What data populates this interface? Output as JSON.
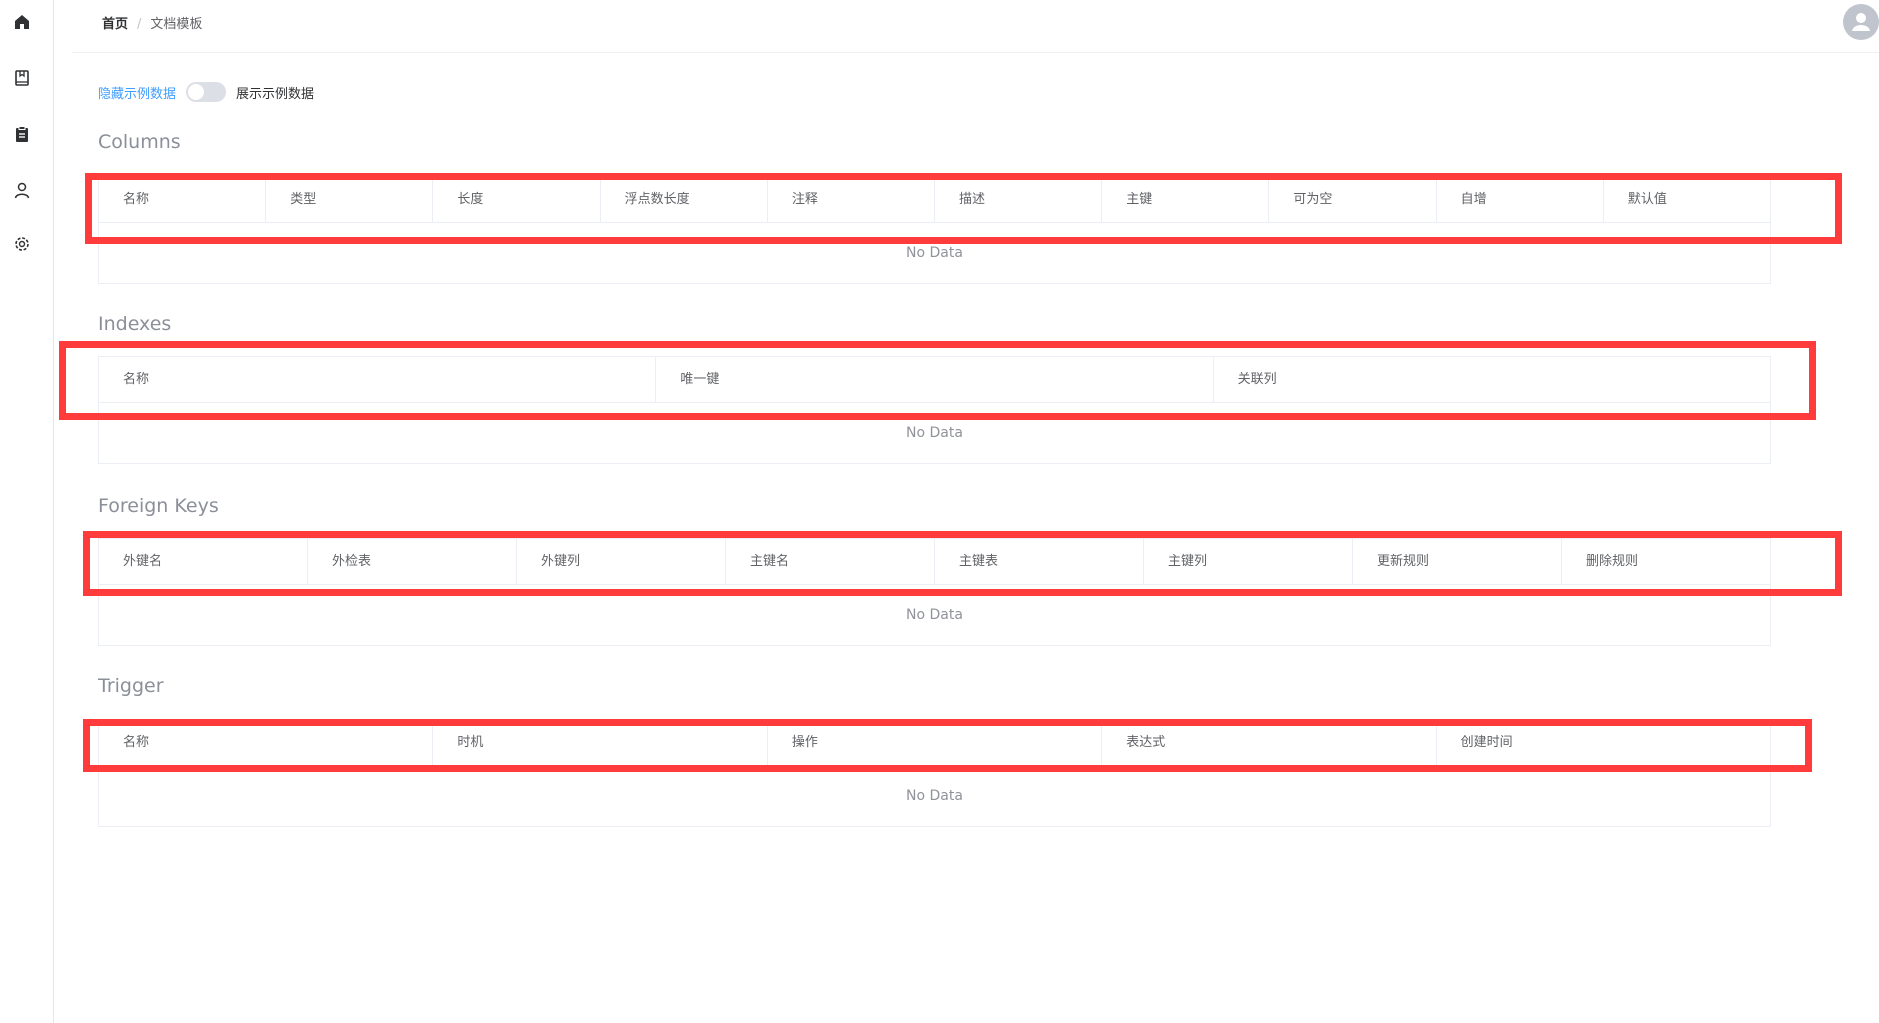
{
  "sidebar": {
    "icons": [
      "home-icon",
      "book-icon",
      "clipboard-icon",
      "user-icon",
      "gear-icon"
    ]
  },
  "header": {
    "breadcrumb": {
      "home": "首页",
      "separator": "/",
      "current": "文档模板"
    }
  },
  "toggle": {
    "left_label": "隐藏示例数据",
    "right_label": "展示示例数据",
    "on": false
  },
  "sections": {
    "columns": {
      "title": "Columns",
      "headers": [
        "名称",
        "类型",
        "长度",
        "浮点数长度",
        "注释",
        "描述",
        "主键",
        "可为空",
        "自增",
        "默认值"
      ],
      "empty": "No Data"
    },
    "indexes": {
      "title": "Indexes",
      "headers": [
        "名称",
        "唯一键",
        "关联列"
      ],
      "empty": "No Data"
    },
    "foreign_keys": {
      "title": "Foreign Keys",
      "headers": [
        "外键名",
        "外检表",
        "外键列",
        "主键名",
        "主键表",
        "主键列",
        "更新规则",
        "删除规则"
      ],
      "empty": "No Data"
    },
    "trigger": {
      "title": "Trigger",
      "headers": [
        "名称",
        "时机",
        "操作",
        "表达式",
        "创建时间"
      ],
      "empty": "No Data"
    }
  },
  "colors": {
    "accent": "#409eff",
    "highlight": "#ff3b3b"
  }
}
